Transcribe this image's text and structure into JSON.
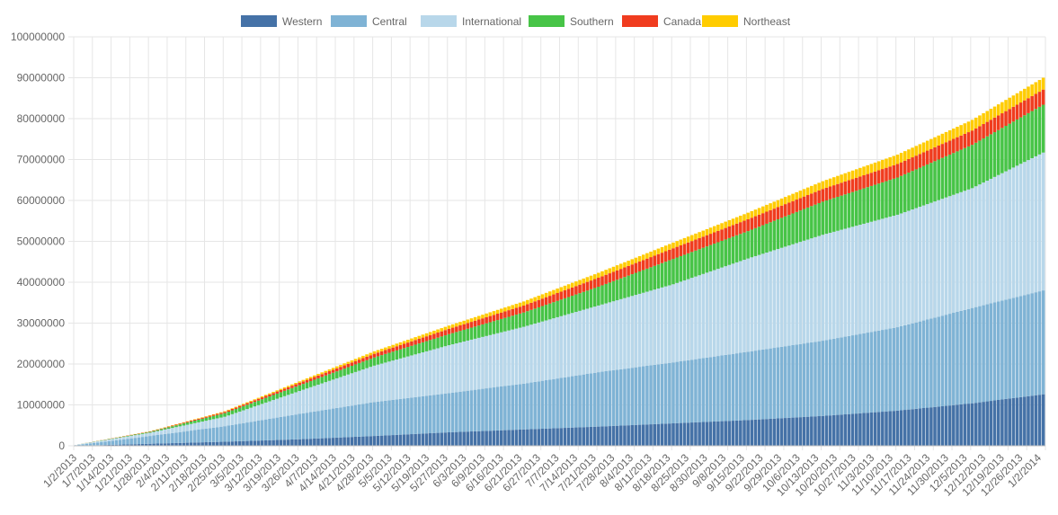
{
  "chart_data": {
    "type": "bar",
    "stacked": true,
    "title": "",
    "xlabel": "",
    "ylabel": "",
    "ylim": [
      0,
      100000000
    ],
    "y_ticks": [
      "0",
      "10000000",
      "20000000",
      "30000000",
      "40000000",
      "50000000",
      "60000000",
      "70000000",
      "80000000",
      "90000000",
      "100000000"
    ],
    "y_tick_values": [
      0,
      10000000,
      20000000,
      30000000,
      40000000,
      50000000,
      60000000,
      70000000,
      80000000,
      90000000,
      100000000
    ],
    "legend_position": "top",
    "grid": true,
    "period_start": "1/2/2013",
    "period_end": "1/2/2014",
    "bar_count": 260,
    "x_tick_labels": [
      "1/2/2013",
      "1/7/2013",
      "1/14/2013",
      "1/21/2013",
      "1/28/2013",
      "2/4/2013",
      "2/11/2013",
      "2/18/2013",
      "2/25/2013",
      "3/5/2013",
      "3/12/2013",
      "3/19/2013",
      "3/26/2013",
      "4/7/2013",
      "4/14/2013",
      "4/21/2013",
      "4/28/2013",
      "5/5/2013",
      "5/12/2013",
      "5/19/2013",
      "5/27/2013",
      "6/3/2013",
      "6/9/2013",
      "6/16/2013",
      "6/21/2013",
      "6/27/2013",
      "7/7/2013",
      "7/14/2013",
      "7/21/2013",
      "7/28/2013",
      "8/4/2013",
      "8/11/2013",
      "8/18/2013",
      "8/25/2013",
      "8/30/2013",
      "9/8/2013",
      "9/15/2013",
      "9/22/2013",
      "9/29/2013",
      "10/6/2013",
      "10/13/2013",
      "10/20/2013",
      "10/27/2013",
      "11/3/2013",
      "11/10/2013",
      "11/17/2013",
      "11/24/2013",
      "11/30/2013",
      "12/5/2013",
      "12/12/2013",
      "12/19/2013",
      "12/26/2013",
      "1/2/2014"
    ],
    "series": [
      {
        "name": "Western",
        "color": "#4572a7",
        "anchors": [
          [
            0,
            0
          ],
          [
            20,
            500000
          ],
          [
            40,
            1000000
          ],
          [
            60,
            1600000
          ],
          [
            80,
            2400000
          ],
          [
            100,
            3300000
          ],
          [
            120,
            4000000
          ],
          [
            140,
            4700000
          ],
          [
            160,
            5500000
          ],
          [
            180,
            6300000
          ],
          [
            200,
            7300000
          ],
          [
            220,
            8600000
          ],
          [
            240,
            10400000
          ],
          [
            259,
            12600000
          ]
        ]
      },
      {
        "name": "Central",
        "color": "#7fb3d5",
        "anchors": [
          [
            0,
            100000
          ],
          [
            20,
            1900000
          ],
          [
            40,
            3800000
          ],
          [
            60,
            6200000
          ],
          [
            80,
            8300000
          ],
          [
            100,
            9600000
          ],
          [
            120,
            11200000
          ],
          [
            140,
            13300000
          ],
          [
            160,
            14900000
          ],
          [
            180,
            16700000
          ],
          [
            200,
            18400000
          ],
          [
            220,
            20400000
          ],
          [
            240,
            23300000
          ],
          [
            259,
            25400000
          ]
        ]
      },
      {
        "name": "International",
        "color": "#b8d7ea",
        "anchors": [
          [
            0,
            100000
          ],
          [
            20,
            800000
          ],
          [
            40,
            2300000
          ],
          [
            60,
            5600000
          ],
          [
            80,
            8900000
          ],
          [
            100,
            11700000
          ],
          [
            120,
            13900000
          ],
          [
            140,
            16300000
          ],
          [
            160,
            19100000
          ],
          [
            180,
            22800000
          ],
          [
            200,
            25900000
          ],
          [
            220,
            27500000
          ],
          [
            240,
            29300000
          ],
          [
            259,
            33700000
          ]
        ]
      },
      {
        "name": "Southern",
        "color": "#47c447",
        "anchors": [
          [
            0,
            0
          ],
          [
            20,
            200000
          ],
          [
            40,
            900000
          ],
          [
            60,
            1400000
          ],
          [
            80,
            2000000
          ],
          [
            100,
            2700000
          ],
          [
            120,
            3500000
          ],
          [
            140,
            4600000
          ],
          [
            160,
            6200000
          ],
          [
            180,
            6700000
          ],
          [
            200,
            8100000
          ],
          [
            220,
            9100000
          ],
          [
            240,
            10600000
          ],
          [
            259,
            11700000
          ]
        ]
      },
      {
        "name": "Canada",
        "color": "#f03c1f",
        "anchors": [
          [
            0,
            0
          ],
          [
            20,
            100000
          ],
          [
            40,
            300000
          ],
          [
            60,
            600000
          ],
          [
            80,
            900000
          ],
          [
            100,
            1300000
          ],
          [
            120,
            1700000
          ],
          [
            140,
            2200000
          ],
          [
            160,
            2600000
          ],
          [
            180,
            2900000
          ],
          [
            200,
            3100000
          ],
          [
            220,
            3300000
          ],
          [
            240,
            3500000
          ],
          [
            259,
            3700000
          ]
        ]
      },
      {
        "name": "Northeast",
        "color": "#ffcc00",
        "anchors": [
          [
            0,
            0
          ],
          [
            20,
            50000
          ],
          [
            40,
            150000
          ],
          [
            60,
            350000
          ],
          [
            80,
            600000
          ],
          [
            100,
            800000
          ],
          [
            120,
            1000000
          ],
          [
            140,
            1200000
          ],
          [
            160,
            1400000
          ],
          [
            180,
            1600000
          ],
          [
            200,
            1900000
          ],
          [
            220,
            2300000
          ],
          [
            240,
            2600000
          ],
          [
            259,
            2900000
          ]
        ]
      }
    ]
  }
}
